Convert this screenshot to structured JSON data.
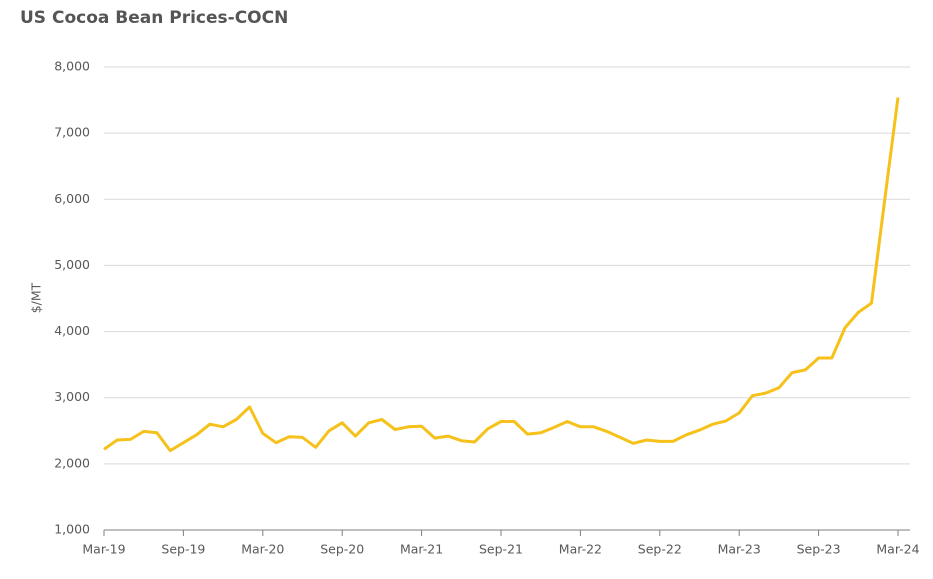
{
  "chart_data": {
    "type": "line",
    "title": "US Cocoa Bean Prices-COCN",
    "y_label": "$/MT",
    "categories": [
      "Mar-19",
      null,
      null,
      null,
      null,
      null,
      "Sep-19",
      null,
      null,
      null,
      null,
      null,
      "Mar-20",
      null,
      null,
      null,
      null,
      null,
      "Sep-20",
      null,
      null,
      null,
      null,
      null,
      "Mar-21",
      null,
      null,
      null,
      null,
      null,
      "Sep-21",
      null,
      null,
      null,
      null,
      null,
      "Mar-22",
      null,
      null,
      null,
      null,
      null,
      "Sep-22",
      null,
      null,
      null,
      null,
      null,
      "Mar-23",
      null,
      null,
      null,
      null,
      null,
      "Sep-23",
      null,
      null,
      null,
      null,
      null,
      "Mar-24"
    ],
    "values": [
      2220,
      2360,
      2370,
      2490,
      2470,
      2200,
      2320,
      2440,
      2600,
      2560,
      2670,
      2860,
      2460,
      2320,
      2410,
      2400,
      2250,
      2500,
      2620,
      2420,
      2620,
      2670,
      2520,
      2560,
      2570,
      2390,
      2420,
      2350,
      2330,
      2530,
      2640,
      2640,
      2450,
      2470,
      2550,
      2640,
      2560,
      2560,
      2490,
      2400,
      2310,
      2360,
      2340,
      2340,
      2440,
      2510,
      2600,
      2650,
      2770,
      3030,
      3070,
      3150,
      3380,
      3420,
      3600,
      3600,
      4060,
      4290,
      4430,
      6000,
      7540
    ],
    "color": "#f5c11a",
    "ylim": [
      1000,
      8000
    ],
    "yticks": [
      {
        "value": 1000,
        "label": "1,000"
      },
      {
        "value": 2000,
        "label": "2,000"
      },
      {
        "value": 3000,
        "label": "3,000"
      },
      {
        "value": 4000,
        "label": "4,000"
      },
      {
        "value": 5000,
        "label": "5,000"
      },
      {
        "value": 6000,
        "label": "6,000"
      },
      {
        "value": 7000,
        "label": "7,000"
      },
      {
        "value": 8000,
        "label": "8,000"
      }
    ],
    "grid": true
  }
}
